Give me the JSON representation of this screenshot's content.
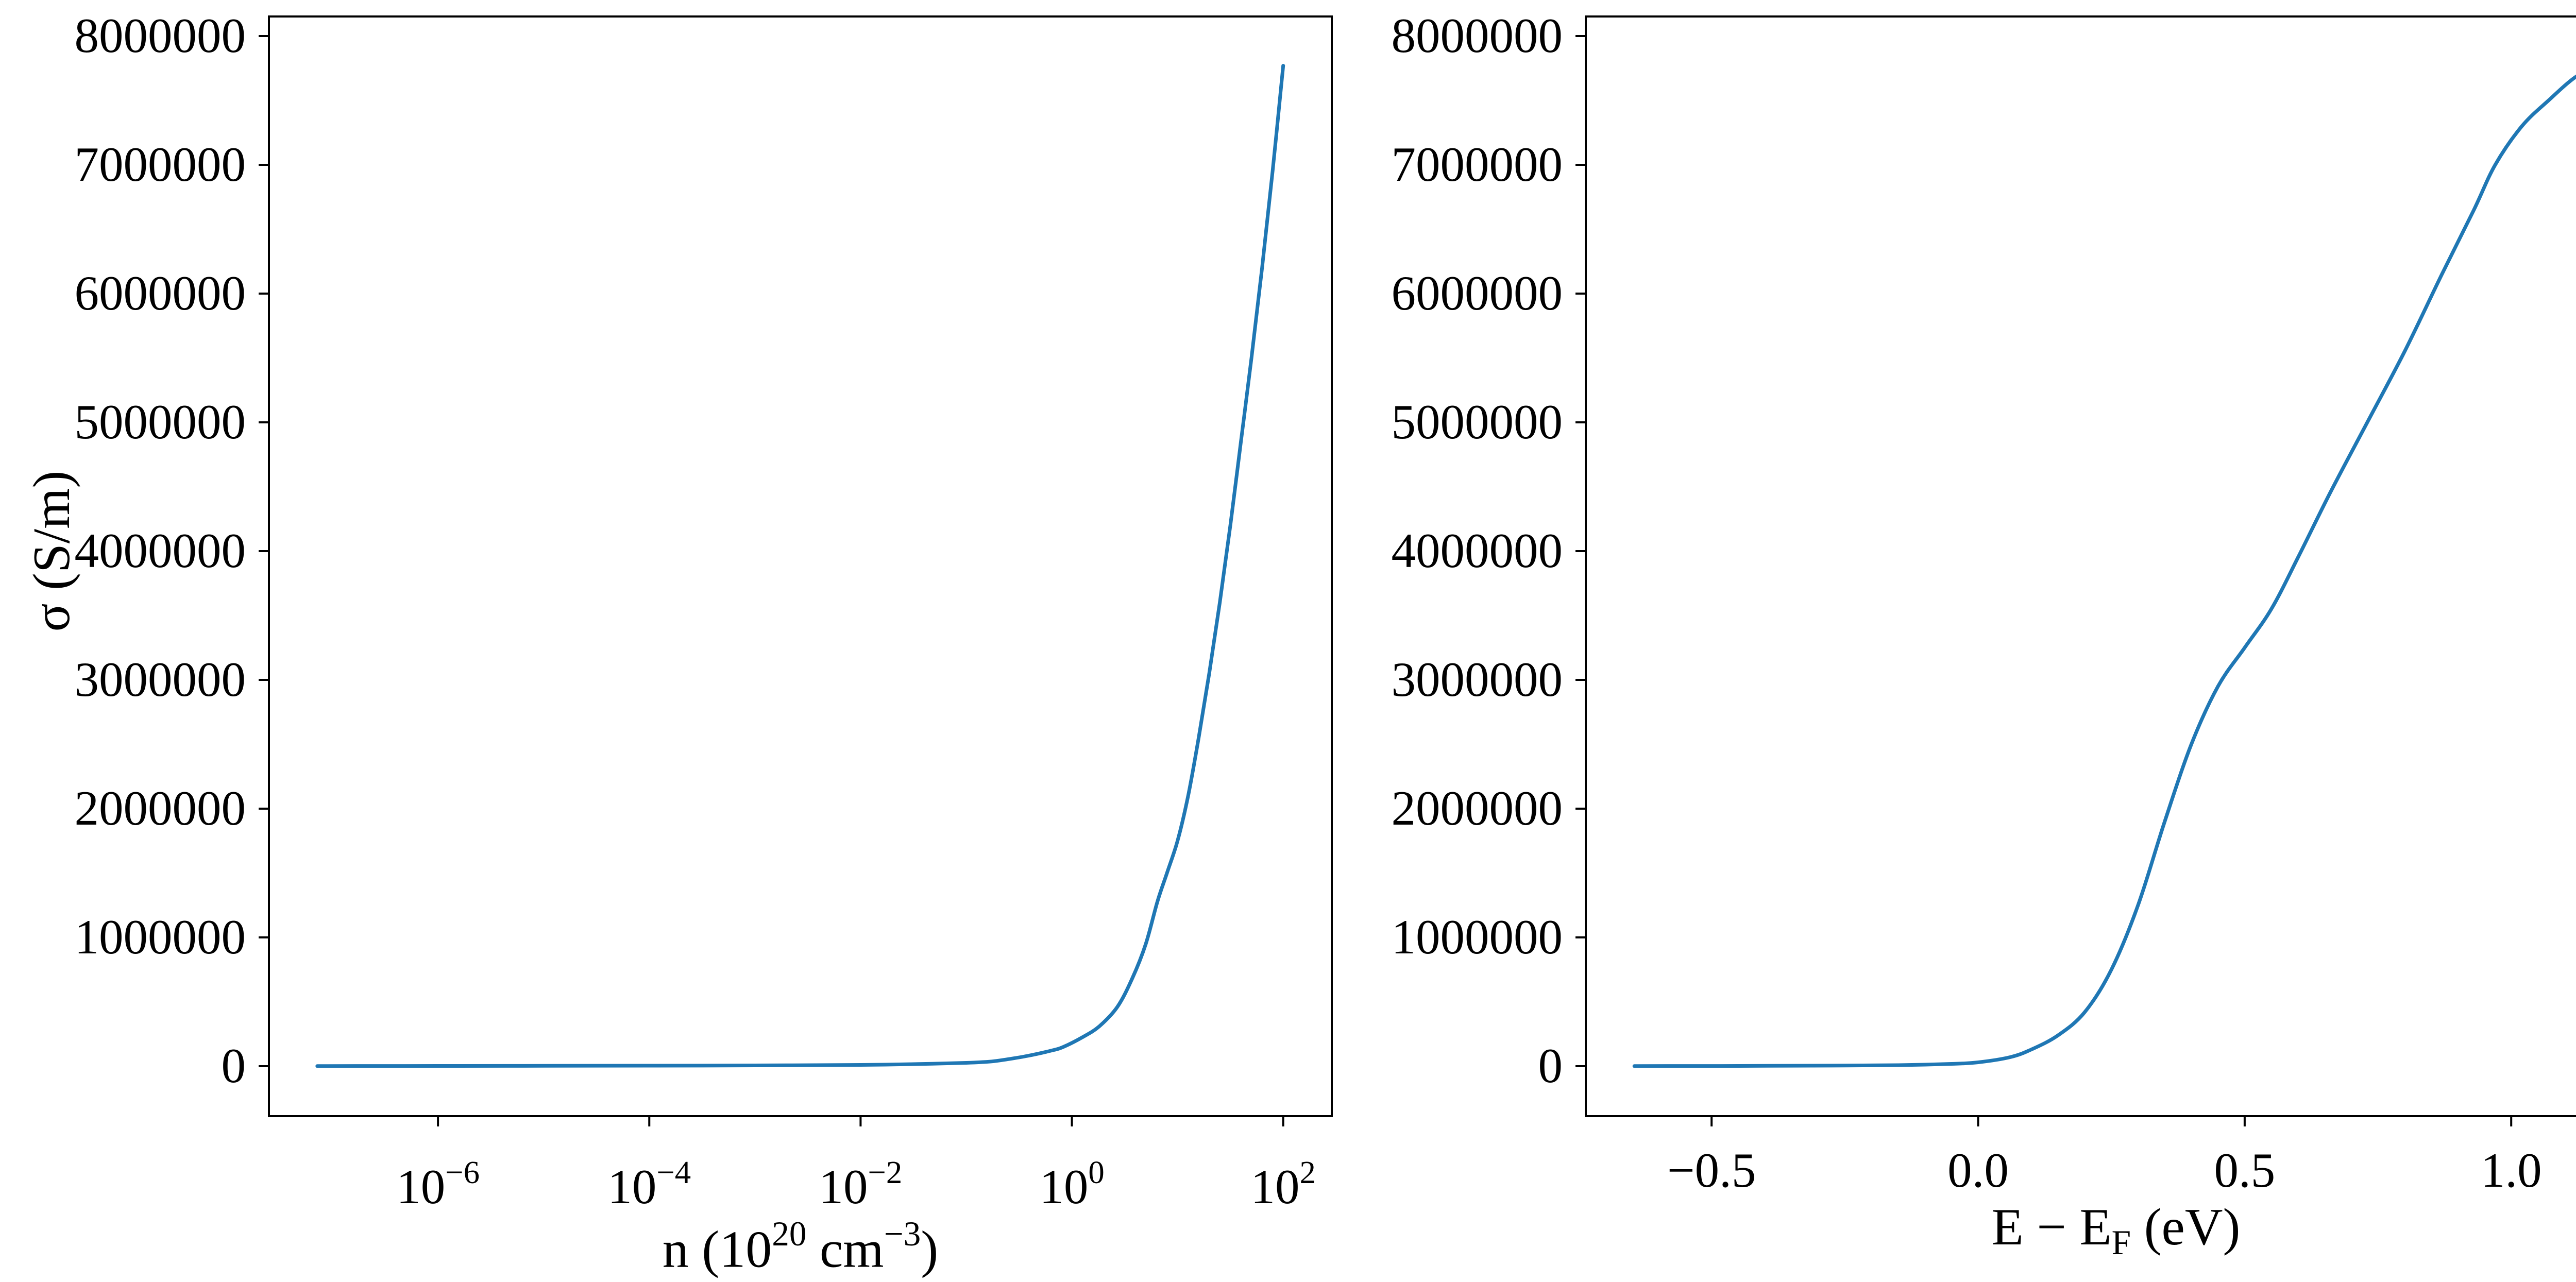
{
  "figure": {
    "background": "#ffffff",
    "axis_color": "#000000",
    "line_color": "#1f77b4"
  },
  "chart_data": [
    {
      "type": "line",
      "panel": "left",
      "xscale": "log",
      "xlabel_parts": [
        {
          "t": "n (10"
        },
        {
          "t": "20",
          "style": "sup"
        },
        {
          "t": " cm"
        },
        {
          "t": "−3",
          "style": "sup"
        },
        {
          "t": ")"
        }
      ],
      "ylabel": "σ (S/m)",
      "xlim_log10": [
        -7.6,
        2.46
      ],
      "xlim": [
        2.5e-08,
        290
      ],
      "ylim": [
        -388000,
        8152000
      ],
      "grid": false,
      "legend": "none",
      "x_ticks": {
        "values": [
          1e-06,
          0.0001,
          0.01,
          1,
          100
        ],
        "labels": [
          {
            "base": "10",
            "exp": "−6"
          },
          {
            "base": "10",
            "exp": "−4"
          },
          {
            "base": "10",
            "exp": "−2"
          },
          {
            "base": "10",
            "exp": "0"
          },
          {
            "base": "10",
            "exp": "2"
          }
        ]
      },
      "y_ticks": {
        "values": [
          0,
          1000000,
          2000000,
          3000000,
          4000000,
          5000000,
          6000000,
          7000000,
          8000000
        ],
        "labels": [
          "0",
          "1000000",
          "2000000",
          "3000000",
          "4000000",
          "5000000",
          "6000000",
          "7000000",
          "8000000"
        ]
      },
      "series": [
        {
          "name": "sigma-vs-n",
          "x": [
            7.2e-08,
            3.2e-07,
            1e-06,
            1e-05,
            0.0001,
            0.001,
            0.01,
            0.0316,
            0.1,
            0.174,
            0.251,
            0.38,
            0.631,
            0.832,
            1.259,
            1.82,
            2.69,
            3.72,
            5.01,
            6.46,
            7.94,
            10,
            12.6,
            15.85,
            19.95,
            25.1,
            31.6,
            39.8,
            50.1,
            63.1,
            79.4,
            100
          ],
          "y": [
            1000,
            1500,
            2000,
            3000,
            4000,
            6000,
            10000,
            16000,
            26000,
            37000,
            55000,
            80000,
            120000,
            150000,
            225000,
            310000,
            460000,
            680000,
            950000,
            1280000,
            1500000,
            1750000,
            2100000,
            2550000,
            3050000,
            3600000,
            4200000,
            4850000,
            5500000,
            6200000,
            6950000,
            7770000
          ]
        }
      ]
    },
    {
      "type": "line",
      "panel": "right",
      "xscale": "linear",
      "xlabel_parts": [
        {
          "t": "E − E"
        },
        {
          "t": "F",
          "style": "sub"
        },
        {
          "t": " (eV)"
        }
      ],
      "ylabel": "",
      "xlim": [
        -0.736,
        1.253
      ],
      "ylim": [
        -388000,
        8152000
      ],
      "grid": false,
      "legend": "none",
      "x_ticks": {
        "values": [
          -0.5,
          0.0,
          0.5,
          1.0
        ],
        "labels": [
          "−0.5",
          "0.0",
          "0.5",
          "1.0"
        ]
      },
      "y_ticks": {
        "values": [
          0,
          1000000,
          2000000,
          3000000,
          4000000,
          5000000,
          6000000,
          7000000,
          8000000
        ],
        "labels": [
          "0",
          "1000000",
          "2000000",
          "3000000",
          "4000000",
          "5000000",
          "6000000",
          "7000000",
          "8000000"
        ]
      },
      "series": [
        {
          "name": "sigma-vs-energy",
          "x": [
            -0.645,
            -0.55,
            -0.45,
            -0.35,
            -0.25,
            -0.15,
            -0.05,
            0,
            0.06,
            0.1,
            0.15,
            0.2,
            0.25,
            0.3,
            0.35,
            0.4,
            0.45,
            0.5,
            0.55,
            0.6,
            0.66,
            0.73,
            0.8,
            0.87,
            0.93,
            0.97,
            1.02,
            1.07,
            1.12,
            1.163
          ],
          "y": [
            1000,
            1500,
            2000,
            3500,
            5000,
            8000,
            18000,
            30000,
            70000,
            130000,
            240000,
            420000,
            750000,
            1250000,
            1900000,
            2500000,
            2950000,
            3250000,
            3550000,
            3950000,
            4450000,
            5000000,
            5550000,
            6150000,
            6650000,
            7000000,
            7300000,
            7500000,
            7680000,
            7770000
          ]
        }
      ]
    }
  ]
}
